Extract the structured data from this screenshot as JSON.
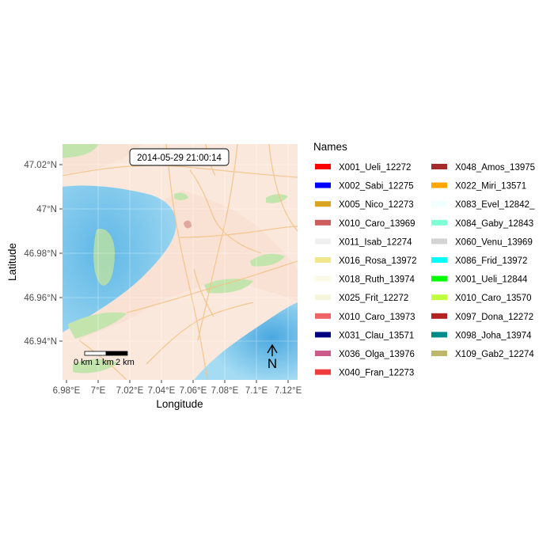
{
  "map": {
    "timestamp": "2014-05-29 21:00:14",
    "x_axis_title": "Longitude",
    "y_axis_title": "Latitude",
    "x_ticks": [
      "6.98°E",
      "7°E",
      "7.02°E",
      "7.04°E",
      "7.06°E",
      "7.08°E",
      "7.1°E",
      "7.12°E"
    ],
    "y_ticks": [
      "47.02°N",
      "47°N",
      "46.98°N",
      "46.96°N",
      "46.94°N"
    ],
    "scale_bar": {
      "labels": [
        "0 km",
        "1 km",
        "2 km"
      ]
    },
    "north_arrow": {
      "label": "N"
    },
    "colors": {
      "water": "#8fd0ee",
      "land": "#fbe8dc",
      "greenery": "#c3e5ad",
      "roads": "#f3c48a"
    }
  },
  "legend": {
    "title": "Names",
    "columns": [
      [
        {
          "label": "X001_Ueli_12272",
          "color": "#ff0000"
        },
        {
          "label": "X002_Sabi_12275",
          "color": "#0000ff"
        },
        {
          "label": "X005_Nico_12273",
          "color": "#daa520"
        },
        {
          "label": "X010_Caro_13969",
          "color": "#cd5c5c"
        },
        {
          "label": "X011_Isab_12274",
          "color": "#f0f0f0"
        },
        {
          "label": "X016_Rosa_13972",
          "color": "#f0e68c"
        },
        {
          "label": "X018_Ruth_13974",
          "color": "#fafae6"
        },
        {
          "label": "X025_Frit_12272",
          "color": "#f5f5dc"
        },
        {
          "label": "X010_Caro_13973",
          "color": "#ee6363"
        },
        {
          "label": "X031_Clau_13571",
          "color": "#000080"
        },
        {
          "label": "X036_Olga_13976",
          "color": "#cd5c8c"
        },
        {
          "label": "X040_Fran_12273",
          "color": "#ee3b3b"
        }
      ],
      [
        {
          "label": "X048_Amos_13975",
          "color": "#a52a2a"
        },
        {
          "label": "X022_Miri_13571",
          "color": "#ffa500"
        },
        {
          "label": "X083_Evel_12842_",
          "color": "#f0ffff"
        },
        {
          "label": "X084_Gaby_12843",
          "color": "#7fffd4"
        },
        {
          "label": "X060_Venu_13969",
          "color": "#d3d3d3"
        },
        {
          "label": "X086_Frid_13972",
          "color": "#00ffff"
        },
        {
          "label": "X001_Ueli_12844",
          "color": "#00ff00"
        },
        {
          "label": "X010_Caro_13570",
          "color": "#c0ff3e"
        },
        {
          "label": "X097_Dona_12272",
          "color": "#b22222"
        },
        {
          "label": "X098_Joha_13974",
          "color": "#008b8b"
        },
        {
          "label": "X109_Gab2_12274",
          "color": "#bdb76b"
        }
      ]
    ]
  }
}
